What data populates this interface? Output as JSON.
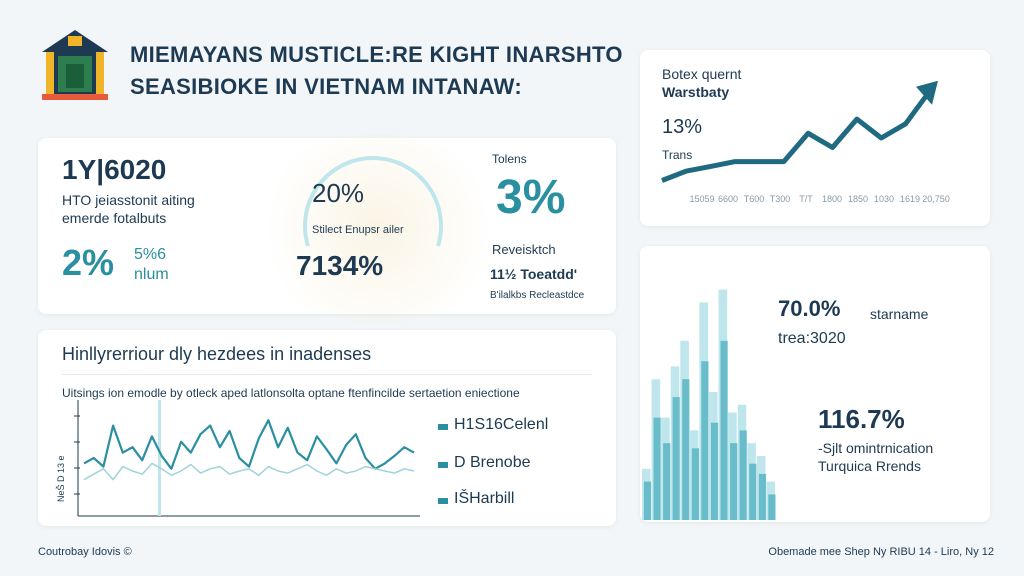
{
  "header": {
    "title_line1": "MIEMAYANS MUSTICLE:RE KIGHT INARSHTO",
    "title_line2": "SEASIBIOKE IN VIETNAM INTANAW:"
  },
  "stats_card": {
    "big_number": "1Y|6020",
    "desc_line1": "HTO jeiasstonit aiting",
    "desc_line2": "emerde fotalbuts",
    "pct_left": "2%",
    "pct_left_sub1": "5%6",
    "pct_left_sub2": "nlum",
    "pct_mid": "20%",
    "mid_label": "Stilect Enupsr ailer",
    "pct_mid_big": "7134%",
    "right_label": "Tolens",
    "right_pct": "3%",
    "right_label2": "Reveisktch",
    "right_foot1": "11½ Toeatdd'",
    "right_foot2": "B'ilalkbs Recleastdce"
  },
  "trend_card": {
    "title_line1": "Botex quernt",
    "title_line2": "Warstbaty",
    "pct": "13%",
    "sub": "Trans",
    "accent": "#1f6a80"
  },
  "line_card": {
    "title": "Hinllyrerriour dly hezdees in inadenses",
    "subtitle": "Uitsings ion emodle by otleck aped latlonsolta optane ftenfincilde sertaetion eniectione",
    "legend_1": "H1S16Celenl",
    "legend_2": "D Brenobe",
    "legend_3": "IŠHarbill",
    "y_axis_label": "NeŠ D 13 e"
  },
  "bar_card": {
    "pct_1": "70.0%",
    "pct_1_label": "starname",
    "pct_1_sub": "trea:3020",
    "pct_2": "116.7%",
    "pct_2_line1": "-Sjlt omintrnication",
    "pct_2_line2": "Turquica Rrends"
  },
  "footer": {
    "left": "Coutrobay Idovis ©",
    "right": "Obemade mee Shep Ny RIBU 14 - Liro, Ny 12"
  },
  "chart_data": [
    {
      "type": "line",
      "title": "",
      "x": [
        "1",
        "2",
        "3",
        "4",
        "5",
        "6",
        "7",
        "8",
        "9",
        "10",
        "11",
        "12"
      ],
      "x_tick_labels": [
        "",
        "15059",
        "6600",
        "T600",
        "T300",
        "T/T",
        "1800",
        "1850",
        "1030",
        "1619",
        "20,750"
      ],
      "series": [
        {
          "values": [
            1,
            2,
            2.5,
            3,
            3,
            3,
            6,
            4.5,
            7.5,
            5.5,
            7,
            10.5
          ]
        }
      ],
      "ylim": [
        0,
        11
      ]
    },
    {
      "type": "line",
      "title": "",
      "series": [
        {
          "values": [
            45,
            50,
            42,
            80,
            55,
            60,
            48,
            70,
            52,
            40,
            65,
            55,
            72,
            80,
            60,
            75,
            50,
            42,
            68,
            85,
            60,
            78,
            55,
            48,
            70,
            58,
            45,
            62,
            72,
            50,
            40,
            45,
            52,
            60,
            55
          ]
        },
        {
          "values": [
            30,
            35,
            40,
            30,
            42,
            38,
            35,
            45,
            40,
            34,
            38,
            44,
            36,
            40,
            42,
            35,
            38,
            40,
            34,
            42,
            38,
            36,
            40,
            44,
            38,
            34,
            40,
            36,
            38,
            42,
            40,
            38,
            36,
            40,
            38
          ]
        }
      ],
      "ylim": [
        0,
        100
      ]
    },
    {
      "type": "bar",
      "title": "",
      "series": [
        {
          "values": [
            20,
            55,
            40,
            60,
            70,
            35,
            85,
            50,
            90,
            42,
            45,
            30,
            25,
            15
          ]
        },
        {
          "values": [
            15,
            40,
            30,
            48,
            55,
            28,
            62,
            38,
            70,
            30,
            35,
            22,
            18,
            10
          ]
        }
      ],
      "ylim": [
        0,
        100
      ]
    }
  ]
}
